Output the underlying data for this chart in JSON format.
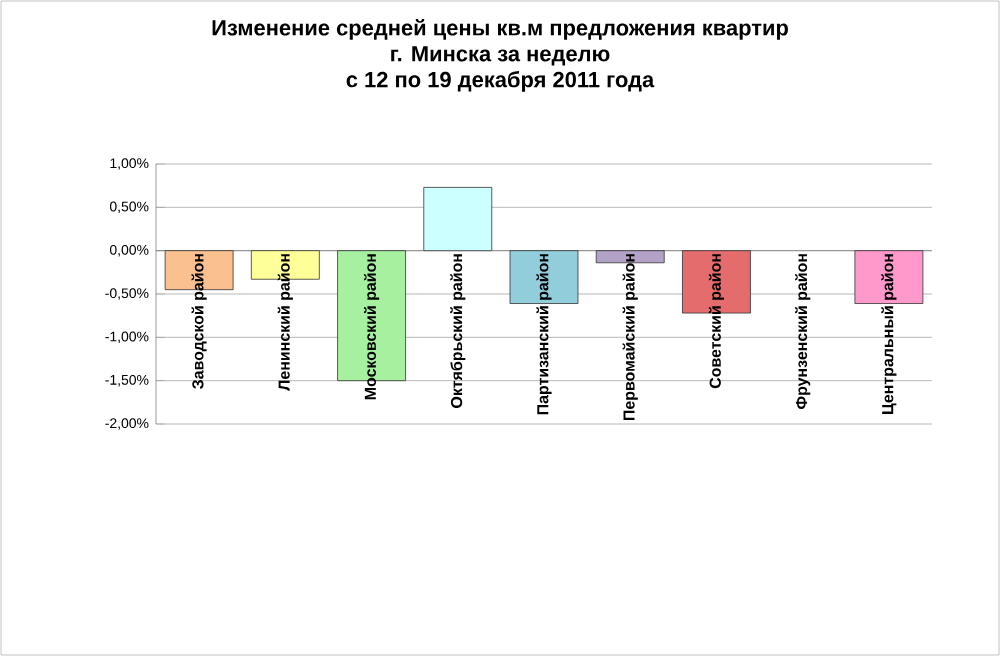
{
  "chart_data": {
    "type": "bar",
    "title": "Изменение средней цены кв.м предложения квартир\nг. Минска за неделю\nс 12 по 19 декабря 2011 года",
    "categories": [
      "Заводской район",
      "Ленинский район",
      "Московский район",
      "Октябрьский район",
      "Партизанский район",
      "Первомайский район",
      "Советский район",
      "Фрунзенский район",
      "Центральный район"
    ],
    "values": [
      -0.45,
      -0.33,
      -1.5,
      0.73,
      -0.61,
      -0.14,
      -0.72,
      null,
      -0.61
    ],
    "colors": [
      "#fac090",
      "#ffff99",
      "#a6f0a0",
      "#ccffff",
      "#92cddc",
      "#b3a2c7",
      "#e46c6c",
      "#ffffff",
      "#ff99cc"
    ],
    "ylim": [
      -2,
      1
    ],
    "yticks": [
      {
        "value": -2,
        "label": "-2,00%"
      },
      {
        "value": -1.5,
        "label": "-1,50%"
      },
      {
        "value": -1,
        "label": "-1,00%"
      },
      {
        "value": -0.5,
        "label": "-0,50%"
      },
      {
        "value": 0,
        "label": "0,00%"
      },
      {
        "value": 0.5,
        "label": "0,50%"
      },
      {
        "value": 1,
        "label": "1,00%"
      }
    ],
    "grid": "y"
  }
}
